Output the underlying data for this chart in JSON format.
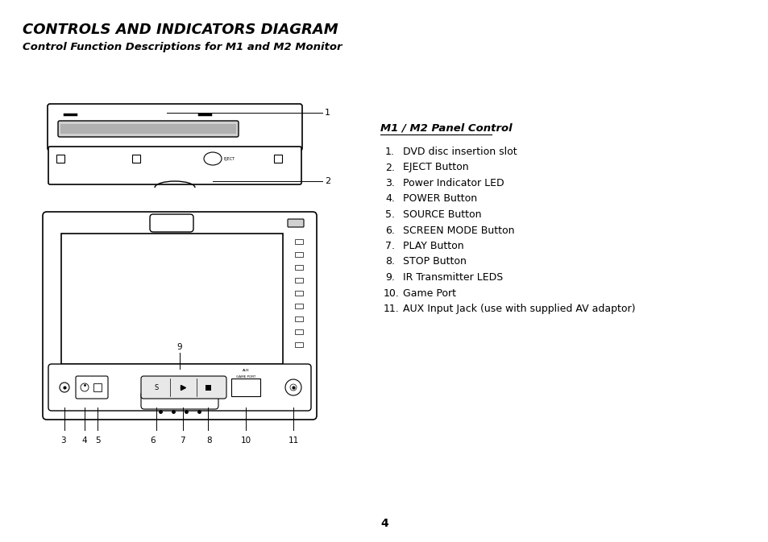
{
  "title": "CONTROLS AND INDICATORS DIAGRAM",
  "subtitle": "Control Function Descriptions for M1 and M2 Monitor",
  "panel_title": "M1 / M2 Panel Control",
  "items": [
    "DVD disc insertion slot",
    "EJECT Button",
    "Power Indicator LED",
    "POWER Button",
    "SOURCE Button",
    "SCREEN MODE Button",
    "PLAY Button",
    "STOP Button",
    "IR Transmitter LEDS",
    "Game Port",
    "AUX Input Jack (use with supplied AV adaptor)"
  ],
  "page_number": "4",
  "bg_color": "#ffffff",
  "text_color": "#000000",
  "line_color": "#000000",
  "diagram_line_color": "#000000",
  "gray_fill": "#e8e8e8",
  "light_gray": "#d0d0d0",
  "white": "#ffffff"
}
